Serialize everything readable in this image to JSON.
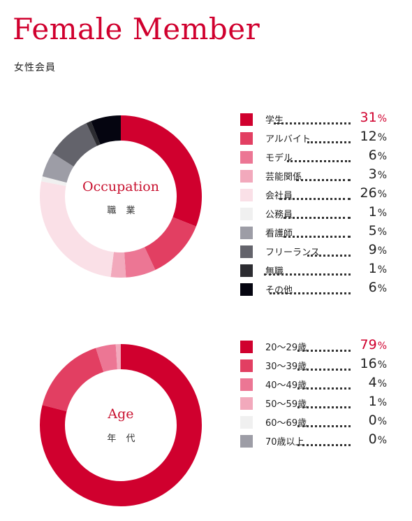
{
  "header": {
    "title": "Female Member",
    "subtitle": "女性会員"
  },
  "chart_data": [
    {
      "type": "pie",
      "title": "Occupation",
      "subtitle": "職 業",
      "unit": "%",
      "categories": [
        "学生",
        "アルバイト",
        "モデル",
        "芸能関係",
        "会社員",
        "公務員",
        "看護師",
        "フリーランス",
        "無職",
        "その他"
      ],
      "values": [
        31,
        12,
        6,
        3,
        26,
        1,
        5,
        9,
        1,
        6
      ],
      "colors": [
        "#d0002e",
        "#e23f62",
        "#ec7694",
        "#f2a9bc",
        "#fae0e7",
        "#f0f0f0",
        "#9d9da6",
        "#63636b",
        "#2c2c31",
        "#050510"
      ],
      "highlight_index": 0,
      "legend_position": "right"
    },
    {
      "type": "pie",
      "title": "Age",
      "subtitle": "年 代",
      "unit": "%",
      "categories": [
        "20～29歳",
        "30～39歳",
        "40～49歳",
        "50～59歳",
        "60～69歳",
        "70歳以上"
      ],
      "values": [
        79,
        16,
        4,
        1,
        0,
        0
      ],
      "colors": [
        "#d0002e",
        "#e23f62",
        "#ec7694",
        "#f2a9bc",
        "#f0f0f0",
        "#9d9da6"
      ],
      "highlight_index": 0,
      "legend_position": "right"
    }
  ]
}
